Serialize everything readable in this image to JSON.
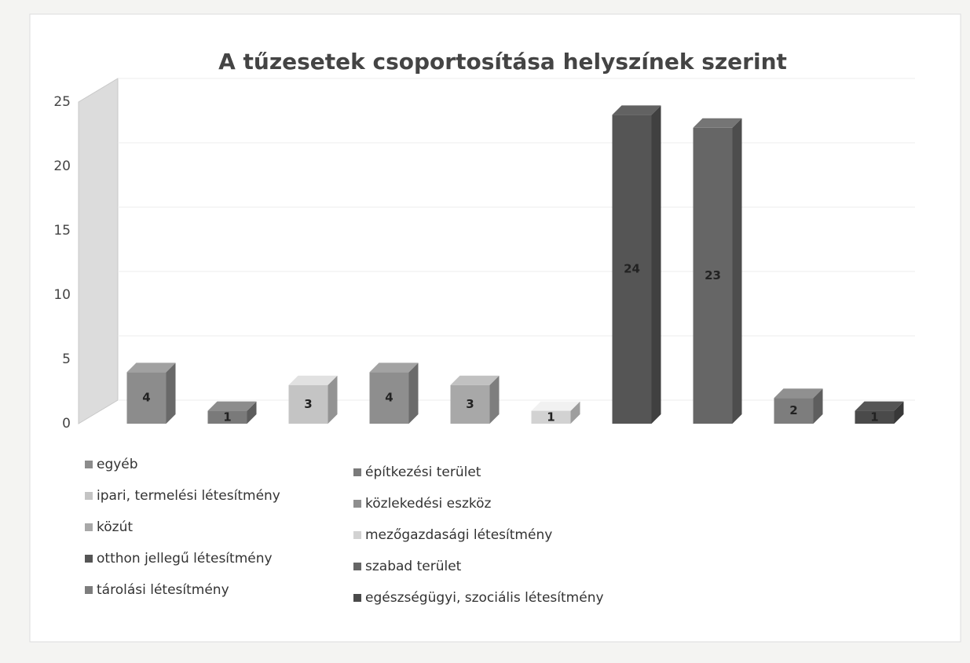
{
  "chart_data": {
    "type": "bar",
    "title": "A tűzesetek csoportosítása helyszínek szerint",
    "categories": [
      "egyéb",
      "építkezési terület",
      "ipari, termelési létesítmény",
      "közlekedési eszköz",
      "közút",
      "mezőgazdasági létesítmény",
      "otthon jellegű létesítmény",
      "szabad terület",
      "tárolási létesítmény",
      "egészségügyi, szociális létesítmény"
    ],
    "values": [
      4,
      1,
      3,
      4,
      3,
      1,
      24,
      23,
      2,
      1
    ],
    "colors": [
      "#8c8c8c",
      "#7a7a7a",
      "#c4c4c4",
      "#8e8e8e",
      "#a8a8a8",
      "#d2d2d2",
      "#555555",
      "#666666",
      "#7d7d7d",
      "#4a4a4a"
    ],
    "ylim": [
      0,
      25
    ],
    "yticks": [
      0,
      5,
      10,
      15,
      20,
      25
    ],
    "grid": true,
    "legend": "bottom"
  }
}
